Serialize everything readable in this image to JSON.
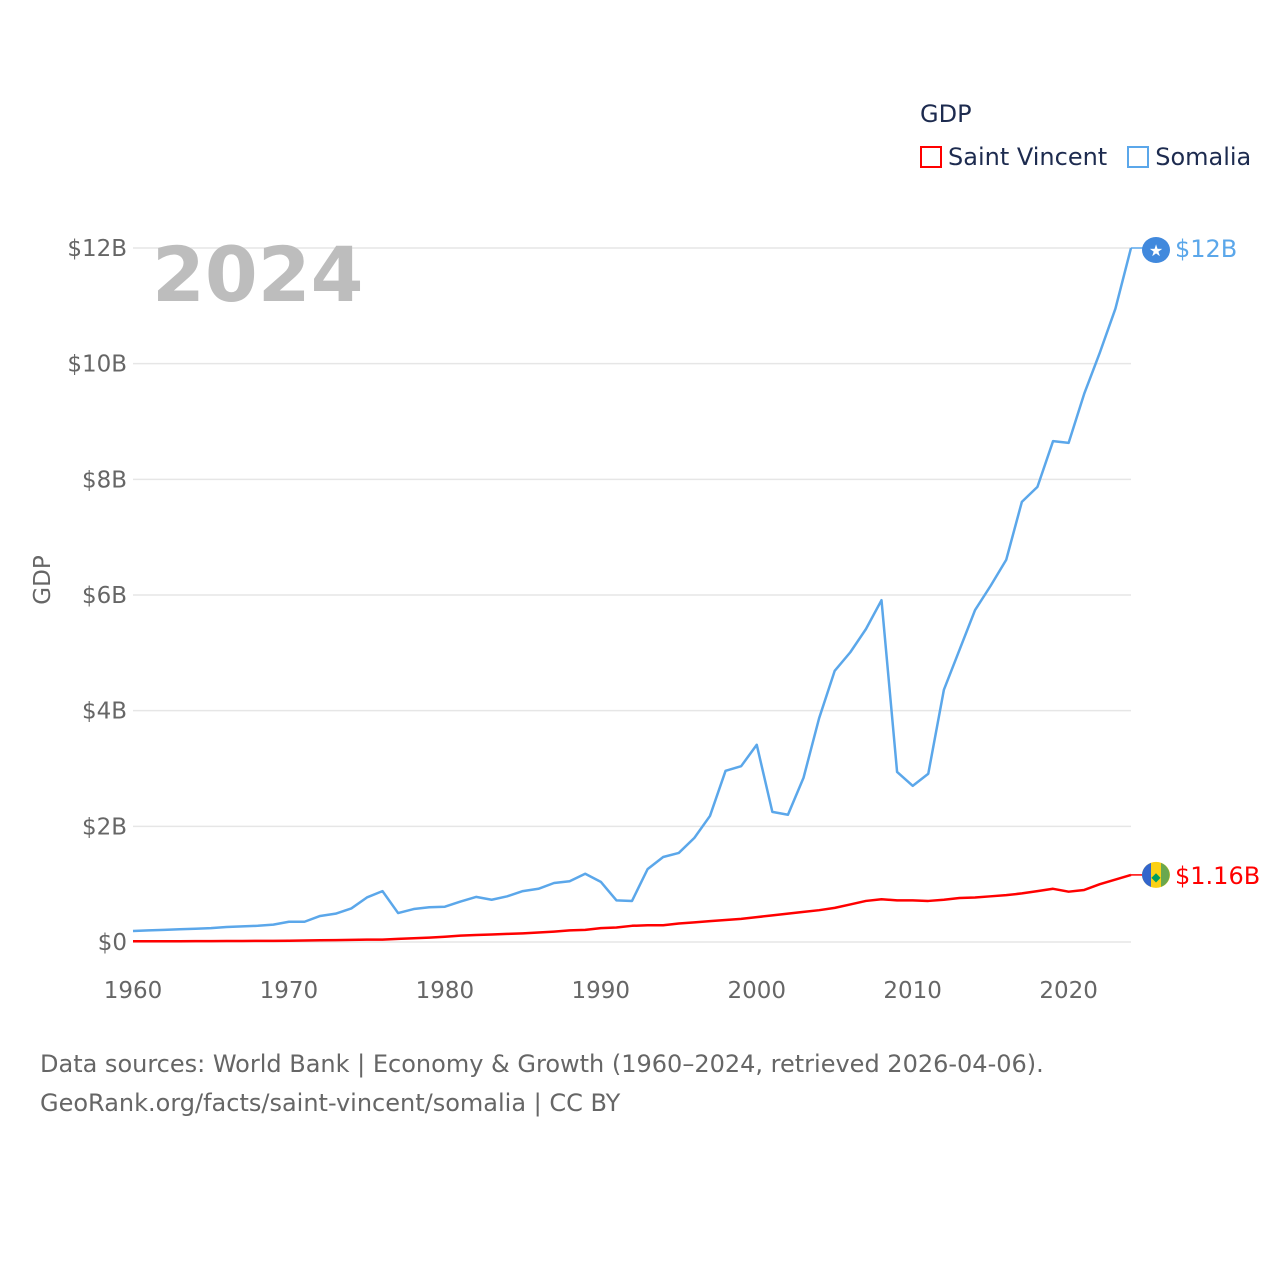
{
  "chart_data": {
    "type": "line",
    "title": "",
    "year_label": "2024",
    "xlabel": "",
    "ylabel": "GDP",
    "xlim": [
      1960,
      2024
    ],
    "ylim": [
      0,
      12
    ],
    "x_ticks": [
      1960,
      1970,
      1980,
      1990,
      2000,
      2010,
      2020
    ],
    "y_ticks": [
      0,
      2,
      4,
      6,
      8,
      10,
      12
    ],
    "y_tick_labels": [
      "$0",
      "$2B",
      "$4B",
      "$6B",
      "$8B",
      "$10B",
      "$12B"
    ],
    "grid": true,
    "legend": {
      "title": "GDP",
      "placement": "top-right"
    },
    "x": [
      1960,
      1961,
      1962,
      1963,
      1964,
      1965,
      1966,
      1967,
      1968,
      1969,
      1970,
      1971,
      1972,
      1973,
      1974,
      1975,
      1976,
      1977,
      1978,
      1979,
      1980,
      1981,
      1982,
      1983,
      1984,
      1985,
      1986,
      1987,
      1988,
      1989,
      1990,
      1991,
      1992,
      1993,
      1994,
      1995,
      1996,
      1997,
      1998,
      1999,
      2000,
      2001,
      2002,
      2003,
      2004,
      2005,
      2006,
      2007,
      2008,
      2009,
      2010,
      2011,
      2012,
      2013,
      2014,
      2015,
      2016,
      2017,
      2018,
      2019,
      2020,
      2021,
      2022,
      2023,
      2024
    ],
    "series": [
      {
        "name": "Saint Vincent",
        "color": "#ff0000",
        "end_label": "$1.16B",
        "values": [
          0.013,
          0.013,
          0.014,
          0.014,
          0.015,
          0.016,
          0.017,
          0.018,
          0.019,
          0.02,
          0.022,
          0.025,
          0.03,
          0.033,
          0.037,
          0.04,
          0.042,
          0.055,
          0.065,
          0.075,
          0.09,
          0.11,
          0.12,
          0.13,
          0.14,
          0.15,
          0.165,
          0.18,
          0.2,
          0.21,
          0.24,
          0.25,
          0.28,
          0.29,
          0.29,
          0.32,
          0.34,
          0.36,
          0.38,
          0.4,
          0.43,
          0.46,
          0.49,
          0.52,
          0.55,
          0.59,
          0.65,
          0.71,
          0.74,
          0.72,
          0.72,
          0.71,
          0.73,
          0.76,
          0.77,
          0.79,
          0.81,
          0.84,
          0.88,
          0.92,
          0.87,
          0.9,
          1.0,
          1.08,
          1.16
        ]
      },
      {
        "name": "Somalia",
        "color": "#5ba7ea",
        "end_label": "$12B",
        "values": [
          0.19,
          0.2,
          0.21,
          0.22,
          0.23,
          0.24,
          0.26,
          0.27,
          0.28,
          0.3,
          0.35,
          0.35,
          0.45,
          0.49,
          0.58,
          0.77,
          0.88,
          0.5,
          0.57,
          0.6,
          0.61,
          0.7,
          0.78,
          0.73,
          0.79,
          0.88,
          0.92,
          1.02,
          1.05,
          1.18,
          1.04,
          0.72,
          0.71,
          1.26,
          1.47,
          1.54,
          1.8,
          2.18,
          2.96,
          3.04,
          3.41,
          2.25,
          2.2,
          2.84,
          3.87,
          4.69,
          5.01,
          5.41,
          5.91,
          2.94,
          2.7,
          2.91,
          4.36,
          5.05,
          5.74,
          6.16,
          6.61,
          7.61,
          7.87,
          8.66,
          8.63,
          9.48,
          10.19,
          10.95,
          12.0
        ]
      }
    ]
  },
  "footer": {
    "line1": "Data sources: World Bank | Economy & Growth (1960–2024, retrieved 2026-04-06).",
    "line2": "GeoRank.org/facts/saint-vincent/somalia | CC BY"
  }
}
